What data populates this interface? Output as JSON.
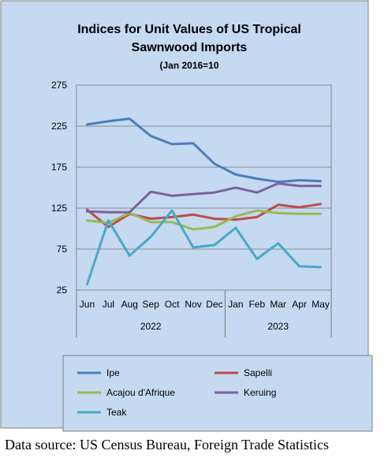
{
  "chart_data": {
    "type": "line",
    "title_line1": "Indices for Unit Values of US Tropical",
    "title_line2": "Sawnwood Imports",
    "subtitle": "(Jan 2016=10",
    "categories": [
      "Jun",
      "Jul",
      "Aug",
      "Sep",
      "Oct",
      "Nov",
      "Dec",
      "Jan",
      "Feb",
      "Mar",
      "Apr",
      "May"
    ],
    "year_groups": [
      {
        "label": "2022",
        "start": 0,
        "end": 6
      },
      {
        "label": "2023",
        "start": 7,
        "end": 11
      }
    ],
    "y_ticks": [
      "275",
      "225",
      "175",
      "125",
      "75",
      "25"
    ],
    "ylim": [
      25,
      275
    ],
    "grid": true,
    "legend_position": "bottom",
    "series": [
      {
        "name": "Ipe",
        "color": "#4a7ebb",
        "values": [
          227,
          231,
          234,
          213,
          203,
          204,
          179,
          166,
          161,
          157,
          159,
          158
        ]
      },
      {
        "name": "Sapelli",
        "color": "#be4b48",
        "values": [
          123,
          102,
          118,
          112,
          114,
          117,
          112,
          111,
          114,
          129,
          126,
          130
        ]
      },
      {
        "name": "Acajou d'Afrique",
        "color": "#98b954",
        "values": [
          110,
          107,
          119,
          108,
          108,
          99,
          102,
          115,
          122,
          119,
          118,
          118
        ]
      },
      {
        "name": "Keruing",
        "color": "#7d60a0",
        "values": [
          121,
          120,
          120,
          145,
          140,
          142,
          144,
          150,
          144,
          155,
          152,
          152
        ]
      },
      {
        "name": "Teak",
        "color": "#46aac5",
        "values": [
          32,
          110,
          67,
          90,
          122,
          77,
          80,
          101,
          63,
          82,
          54,
          53
        ]
      }
    ]
  },
  "source": "Data source: US Census Bureau, Foreign Trade Statistics"
}
